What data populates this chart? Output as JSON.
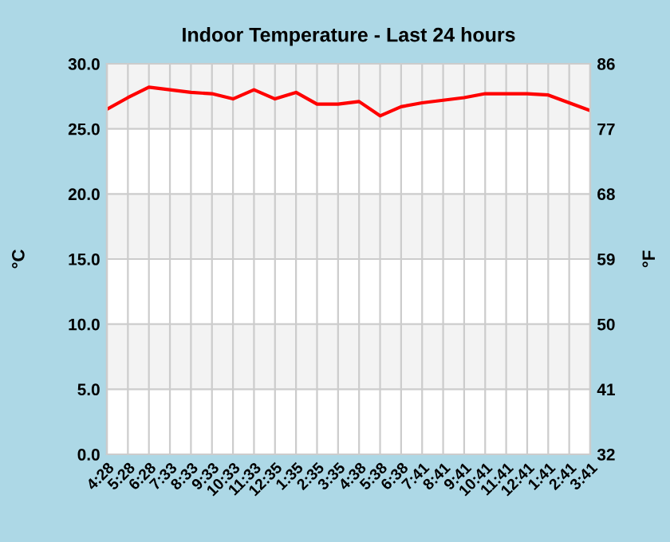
{
  "chart_data": {
    "type": "line",
    "title": "Indoor Temperature - Last 24 hours",
    "ylabel": "°C",
    "y2label": "°F",
    "categories": [
      "4:28",
      "5:28",
      "6:28",
      "7:33",
      "8:33",
      "9:33",
      "10:33",
      "11:33",
      "12:35",
      "1:35",
      "2:35",
      "3:35",
      "4:38",
      "5:38",
      "6:38",
      "7:41",
      "8:41",
      "9:41",
      "10:41",
      "11:41",
      "12:41",
      "1:41",
      "2:41",
      "3:41"
    ],
    "series": [
      {
        "color": "#ff0000",
        "values": [
          26.5,
          27.4,
          28.2,
          28.0,
          27.8,
          27.7,
          27.3,
          28.0,
          27.3,
          27.8,
          26.9,
          26.9,
          27.1,
          26.0,
          26.7,
          27.0,
          27.2,
          27.4,
          27.7,
          27.7,
          27.7,
          27.6,
          27.0,
          26.4
        ]
      }
    ],
    "ylim": [
      0,
      30
    ],
    "yticks": [
      {
        "value": 0,
        "label": "0.0"
      },
      {
        "value": 5,
        "label": "5.0"
      },
      {
        "value": 10,
        "label": "10.0"
      },
      {
        "value": 15,
        "label": "15.0"
      },
      {
        "value": 20,
        "label": "20.0"
      },
      {
        "value": 25,
        "label": "25.0"
      },
      {
        "value": 30,
        "label": "30.0"
      }
    ],
    "y2lim": [
      32,
      86
    ],
    "y2ticks": [
      32,
      41,
      50,
      59,
      68,
      77,
      86
    ],
    "grid": true,
    "legend": false,
    "marker": "none",
    "line_style": "solid"
  }
}
